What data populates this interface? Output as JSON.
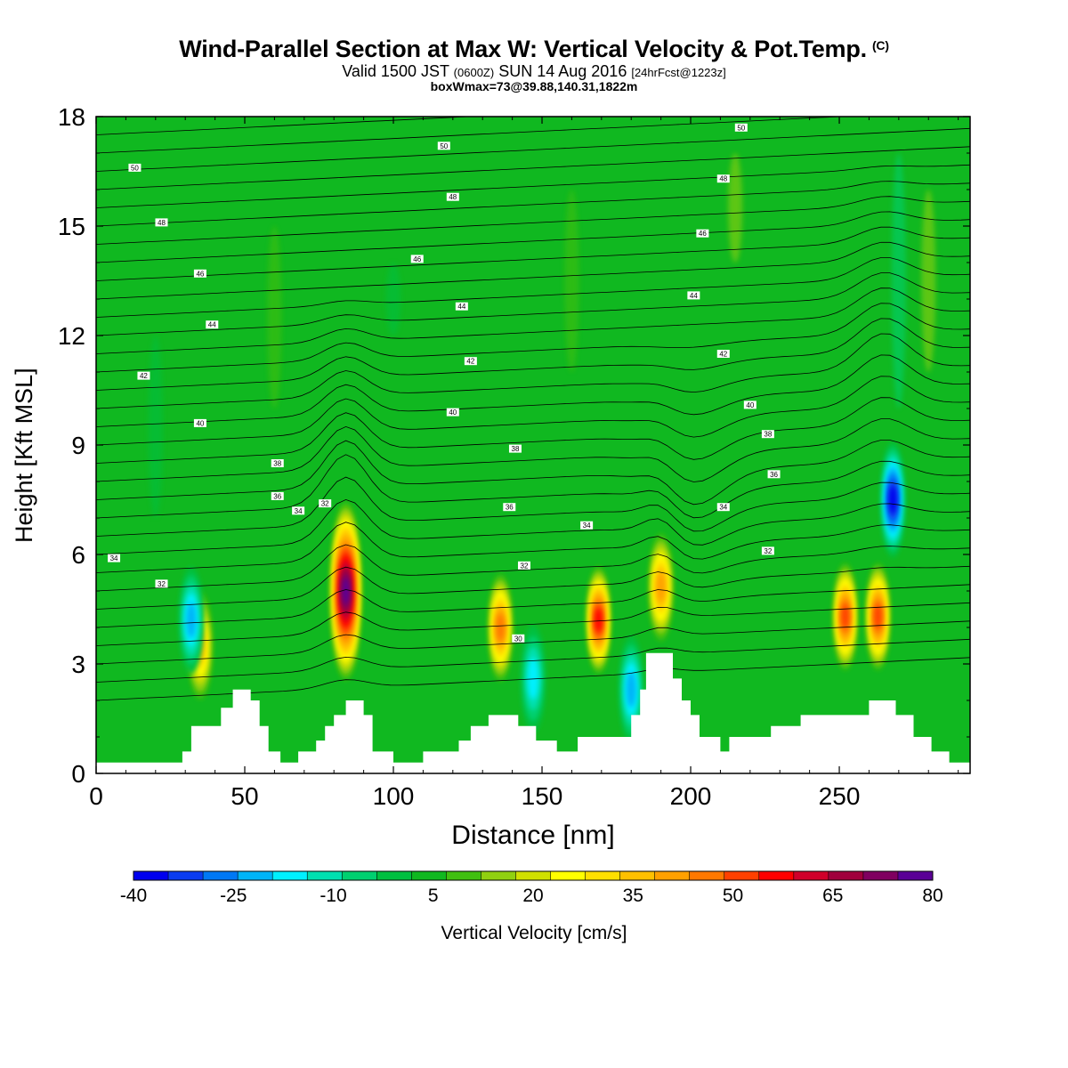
{
  "header": {
    "title": "Wind-Parallel Section at Max W: Vertical Velocity & Pot.Temp.",
    "title_suffix": "(C)",
    "valid_a": "Valid 1500 JST",
    "valid_b": "(0600Z)",
    "valid_c": "SUN 14 Aug 2016",
    "valid_d": "[24hrFcst@1223z]",
    "box": "boxWmax=73@39.88,140.31,1822m"
  },
  "chart_data": {
    "type": "heatmap",
    "title": "Wind-Parallel Section at Max W: Vertical Velocity & Pot.Temp.",
    "xlabel": "Distance [nm]",
    "ylabel": "Height [Kft MSL]",
    "xlim": [
      0,
      294
    ],
    "ylim": [
      0,
      18
    ],
    "xticks": [
      0,
      50,
      100,
      150,
      200,
      250
    ],
    "yticks": [
      0,
      3,
      6,
      9,
      12,
      15,
      18
    ],
    "colorbar": {
      "label": "Vertical Velocity [cm/s]",
      "min": -40,
      "max": 80,
      "step": 5,
      "ticks": [
        -40,
        -25,
        -10,
        5,
        20,
        35,
        50,
        65,
        80
      ],
      "colors": [
        "#0000ee",
        "#0a3cf0",
        "#0078f5",
        "#00b4f8",
        "#00f0ff",
        "#00e0b0",
        "#00d070",
        "#00c040",
        "#10b820",
        "#40c010",
        "#90d010",
        "#d0e000",
        "#ffff00",
        "#ffe000",
        "#ffc000",
        "#ffa000",
        "#ff7800",
        "#ff4000",
        "#ff0000",
        "#d0002a",
        "#a0003c",
        "#800060",
        "#5a0096"
      ]
    },
    "background_value": 0,
    "updrafts": [
      {
        "x": 35,
        "y_center": 3.5,
        "peak": 30
      },
      {
        "x": 84,
        "y_center": 5.0,
        "peak": 73
      },
      {
        "x": 136,
        "y_center": 4.0,
        "peak": 40
      },
      {
        "x": 169,
        "y_center": 4.2,
        "peak": 50
      },
      {
        "x": 190,
        "y_center": 5.1,
        "peak": 38
      },
      {
        "x": 252,
        "y_center": 4.3,
        "peak": 45
      },
      {
        "x": 263,
        "y_center": 4.3,
        "peak": 45
      }
    ],
    "downdrafts": [
      {
        "x": 32,
        "y_center": 4.2,
        "peak": -25
      },
      {
        "x": 147,
        "y_center": 2.6,
        "peak": -20
      },
      {
        "x": 180,
        "y_center": 2.3,
        "peak": -25
      },
      {
        "x": 268,
        "y_center": 7.5,
        "peak": -40
      }
    ],
    "theta_contour_labels": [
      {
        "text": "50",
        "x": 13,
        "y": 16.6
      },
      {
        "text": "50",
        "x": 117,
        "y": 17.2
      },
      {
        "text": "50",
        "x": 217,
        "y": 17.7
      },
      {
        "text": "48",
        "x": 22,
        "y": 15.1
      },
      {
        "text": "48",
        "x": 120,
        "y": 15.8
      },
      {
        "text": "48",
        "x": 211,
        "y": 16.3
      },
      {
        "text": "46",
        "x": 35,
        "y": 13.7
      },
      {
        "text": "46",
        "x": 108,
        "y": 14.1
      },
      {
        "text": "46",
        "x": 204,
        "y": 14.8
      },
      {
        "text": "44",
        "x": 39,
        "y": 12.3
      },
      {
        "text": "44",
        "x": 123,
        "y": 12.8
      },
      {
        "text": "44",
        "x": 201,
        "y": 13.1
      },
      {
        "text": "42",
        "x": 16,
        "y": 10.9
      },
      {
        "text": "42",
        "x": 126,
        "y": 11.3
      },
      {
        "text": "42",
        "x": 211,
        "y": 11.5
      },
      {
        "text": "40",
        "x": 35,
        "y": 9.6
      },
      {
        "text": "40",
        "x": 120,
        "y": 9.9
      },
      {
        "text": "40",
        "x": 220,
        "y": 10.1
      },
      {
        "text": "38",
        "x": 61,
        "y": 8.5
      },
      {
        "text": "38",
        "x": 141,
        "y": 8.9
      },
      {
        "text": "38",
        "x": 226,
        "y": 9.3
      },
      {
        "text": "36",
        "x": 61,
        "y": 7.6
      },
      {
        "text": "36",
        "x": 139,
        "y": 7.3
      },
      {
        "text": "36",
        "x": 228,
        "y": 8.2
      },
      {
        "text": "34",
        "x": 68,
        "y": 7.2
      },
      {
        "text": "34",
        "x": 165,
        "y": 6.8
      },
      {
        "text": "34",
        "x": 211,
        "y": 7.3
      },
      {
        "text": "34",
        "x": 6,
        "y": 5.9
      },
      {
        "text": "32",
        "x": 77,
        "y": 7.4
      },
      {
        "text": "32",
        "x": 144,
        "y": 5.7
      },
      {
        "text": "32",
        "x": 226,
        "y": 6.1
      },
      {
        "text": "32",
        "x": 22,
        "y": 5.2
      },
      {
        "text": "30",
        "x": 142,
        "y": 3.7
      }
    ],
    "terrain": [
      [
        0,
        0.3
      ],
      [
        29,
        0.3
      ],
      [
        29,
        0.6
      ],
      [
        32,
        0.6
      ],
      [
        32,
        1.3
      ],
      [
        42,
        1.3
      ],
      [
        42,
        1.8
      ],
      [
        46,
        1.8
      ],
      [
        46,
        2.3
      ],
      [
        52,
        2.3
      ],
      [
        52,
        2.0
      ],
      [
        55,
        2.0
      ],
      [
        55,
        1.3
      ],
      [
        58,
        1.3
      ],
      [
        58,
        0.6
      ],
      [
        62,
        0.6
      ],
      [
        62,
        0.3
      ],
      [
        68,
        0.3
      ],
      [
        68,
        0.6
      ],
      [
        74,
        0.6
      ],
      [
        74,
        0.9
      ],
      [
        77,
        0.9
      ],
      [
        77,
        1.3
      ],
      [
        80,
        1.3
      ],
      [
        80,
        1.6
      ],
      [
        84,
        1.6
      ],
      [
        84,
        2.0
      ],
      [
        90,
        2.0
      ],
      [
        90,
        1.6
      ],
      [
        93,
        1.6
      ],
      [
        93,
        0.6
      ],
      [
        100,
        0.6
      ],
      [
        100,
        0.3
      ],
      [
        110,
        0.3
      ],
      [
        110,
        0.6
      ],
      [
        122,
        0.6
      ],
      [
        122,
        0.9
      ],
      [
        126,
        0.9
      ],
      [
        126,
        1.3
      ],
      [
        132,
        1.3
      ],
      [
        132,
        1.6
      ],
      [
        142,
        1.6
      ],
      [
        142,
        1.3
      ],
      [
        148,
        1.3
      ],
      [
        148,
        0.9
      ],
      [
        155,
        0.9
      ],
      [
        155,
        0.6
      ],
      [
        162,
        0.6
      ],
      [
        162,
        1.0
      ],
      [
        180,
        1.0
      ],
      [
        180,
        1.6
      ],
      [
        183,
        1.6
      ],
      [
        183,
        2.3
      ],
      [
        185,
        2.3
      ],
      [
        185,
        3.3
      ],
      [
        194,
        3.3
      ],
      [
        194,
        2.6
      ],
      [
        197,
        2.6
      ],
      [
        197,
        2.0
      ],
      [
        200,
        2.0
      ],
      [
        200,
        1.6
      ],
      [
        203,
        1.6
      ],
      [
        203,
        1.0
      ],
      [
        210,
        1.0
      ],
      [
        210,
        0.6
      ],
      [
        213,
        0.6
      ],
      [
        213,
        1.0
      ],
      [
        227,
        1.0
      ],
      [
        227,
        1.3
      ],
      [
        237,
        1.3
      ],
      [
        237,
        1.6
      ],
      [
        248,
        1.6
      ],
      [
        248,
        1.6
      ],
      [
        260,
        1.6
      ],
      [
        260,
        2.0
      ],
      [
        269,
        2.0
      ],
      [
        269,
        1.6
      ],
      [
        275,
        1.6
      ],
      [
        275,
        1.0
      ],
      [
        281,
        1.0
      ],
      [
        281,
        0.6
      ],
      [
        287,
        0.6
      ],
      [
        287,
        0.3
      ],
      [
        294,
        0.3
      ],
      [
        294,
        0
      ],
      [
        0,
        0
      ]
    ]
  }
}
